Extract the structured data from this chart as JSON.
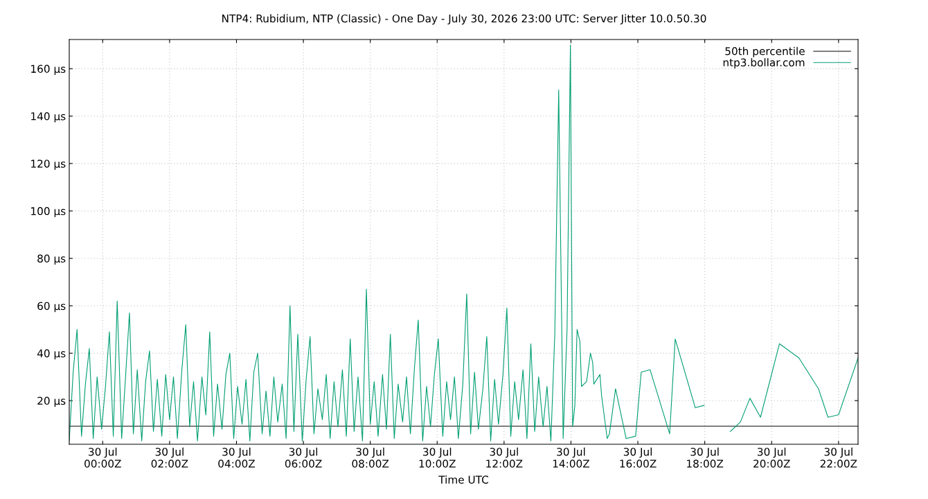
{
  "chart_data": {
    "type": "line",
    "title": "NTP4: Rubidium, NTP (Classic) - One Day - July 30, 2026 23:00 UTC: Server Jitter 10.0.50.30",
    "xlabel": "Time UTC",
    "xlim": [
      "2026-07-29T23:00",
      "2026-07-30T22:35"
    ],
    "ylim": [
      1.6,
      172.3
    ],
    "xticks": [
      {
        "value": "2026-07-30T00:00",
        "label": "30 Jul\n00:00Z"
      },
      {
        "value": "2026-07-30T02:00",
        "label": "30 Jul\n02:00Z"
      },
      {
        "value": "2026-07-30T04:00",
        "label": "30 Jul\n04:00Z"
      },
      {
        "value": "2026-07-30T06:00",
        "label": "30 Jul\n06:00Z"
      },
      {
        "value": "2026-07-30T08:00",
        "label": "30 Jul\n08:00Z"
      },
      {
        "value": "2026-07-30T10:00",
        "label": "30 Jul\n10:00Z"
      },
      {
        "value": "2026-07-30T12:00",
        "label": "30 Jul\n12:00Z"
      },
      {
        "value": "2026-07-30T14:00",
        "label": "30 Jul\n14:00Z"
      },
      {
        "value": "2026-07-30T16:00",
        "label": "30 Jul\n16:00Z"
      },
      {
        "value": "2026-07-30T18:00",
        "label": "30 Jul\n18:00Z"
      },
      {
        "value": "2026-07-30T20:00",
        "label": "30 Jul\n20:00Z"
      },
      {
        "value": "2026-07-30T22:00",
        "label": "30 Jul\n22:00Z"
      }
    ],
    "yticks": [
      {
        "value": 20,
        "label": "20 µs"
      },
      {
        "value": 40,
        "label": "40 µs"
      },
      {
        "value": 60,
        "label": "60 µs"
      },
      {
        "value": 80,
        "label": "80 µs"
      },
      {
        "value": 100,
        "label": "100 µs"
      },
      {
        "value": 120,
        "label": "120 µs"
      },
      {
        "value": 140,
        "label": "140 µs"
      },
      {
        "value": 160,
        "label": "160 µs"
      }
    ],
    "grid": true,
    "legend": "top right",
    "series": [
      {
        "name": "50th percentile",
        "color": "#000000",
        "x": [
          "2026-07-29T23:00",
          "2026-07-30T22:35"
        ],
        "values": [
          9.2,
          9.2
        ]
      },
      {
        "name": "ntp3.bollar.com",
        "color": "#009e73",
        "x": [
          "2026-07-29T23:00",
          "2026-07-29T23:07",
          "2026-07-29T23:14",
          "2026-07-29T23:22",
          "2026-07-29T23:29",
          "2026-07-29T23:36",
          "2026-07-29T23:43",
          "2026-07-29T23:50",
          "2026-07-29T23:58",
          "2026-07-30T00:05",
          "2026-07-30T00:12",
          "2026-07-30T00:19",
          "2026-07-30T00:26",
          "2026-07-30T00:34",
          "2026-07-30T00:41",
          "2026-07-30T00:48",
          "2026-07-30T00:55",
          "2026-07-30T01:02",
          "2026-07-30T01:10",
          "2026-07-30T01:17",
          "2026-07-30T01:24",
          "2026-07-30T01:31",
          "2026-07-30T01:38",
          "2026-07-30T01:46",
          "2026-07-30T01:53",
          "2026-07-30T02:00",
          "2026-07-30T02:07",
          "2026-07-30T02:14",
          "2026-07-30T02:22",
          "2026-07-30T02:29",
          "2026-07-30T02:36",
          "2026-07-30T02:43",
          "2026-07-30T02:50",
          "2026-07-30T02:58",
          "2026-07-30T03:05",
          "2026-07-30T03:12",
          "2026-07-30T03:19",
          "2026-07-30T03:26",
          "2026-07-30T03:34",
          "2026-07-30T03:41",
          "2026-07-30T03:48",
          "2026-07-30T03:55",
          "2026-07-30T04:02",
          "2026-07-30T04:10",
          "2026-07-30T04:17",
          "2026-07-30T04:24",
          "2026-07-30T04:31",
          "2026-07-30T04:38",
          "2026-07-30T04:46",
          "2026-07-30T04:53",
          "2026-07-30T05:00",
          "2026-07-30T05:07",
          "2026-07-30T05:14",
          "2026-07-30T05:22",
          "2026-07-30T05:29",
          "2026-07-30T05:36",
          "2026-07-30T05:43",
          "2026-07-30T05:50",
          "2026-07-30T05:58",
          "2026-07-30T06:05",
          "2026-07-30T06:12",
          "2026-07-30T06:19",
          "2026-07-30T06:26",
          "2026-07-30T06:34",
          "2026-07-30T06:41",
          "2026-07-30T06:48",
          "2026-07-30T06:55",
          "2026-07-30T07:02",
          "2026-07-30T07:10",
          "2026-07-30T07:17",
          "2026-07-30T07:24",
          "2026-07-30T07:31",
          "2026-07-30T07:38",
          "2026-07-30T07:46",
          "2026-07-30T07:53",
          "2026-07-30T08:00",
          "2026-07-30T08:07",
          "2026-07-30T08:14",
          "2026-07-30T08:22",
          "2026-07-30T08:29",
          "2026-07-30T08:36",
          "2026-07-30T08:43",
          "2026-07-30T08:50",
          "2026-07-30T08:58",
          "2026-07-30T09:05",
          "2026-07-30T09:12",
          "2026-07-30T09:19",
          "2026-07-30T09:26",
          "2026-07-30T09:34",
          "2026-07-30T09:41",
          "2026-07-30T09:48",
          "2026-07-30T09:55",
          "2026-07-30T10:02",
          "2026-07-30T10:10",
          "2026-07-30T10:17",
          "2026-07-30T10:24",
          "2026-07-30T10:31",
          "2026-07-30T10:38",
          "2026-07-30T10:46",
          "2026-07-30T10:53",
          "2026-07-30T11:00",
          "2026-07-30T11:07",
          "2026-07-30T11:14",
          "2026-07-30T11:22",
          "2026-07-30T11:29",
          "2026-07-30T11:36",
          "2026-07-30T11:43",
          "2026-07-30T11:50",
          "2026-07-30T11:58",
          "2026-07-30T12:05",
          "2026-07-30T12:12",
          "2026-07-30T12:19",
          "2026-07-30T12:26",
          "2026-07-30T12:34",
          "2026-07-30T12:41",
          "2026-07-30T12:48",
          "2026-07-30T12:55",
          "2026-07-30T13:02",
          "2026-07-30T13:10",
          "2026-07-30T13:17",
          "2026-07-30T13:24",
          "2026-07-30T13:31",
          "2026-07-30T13:38",
          "2026-07-30T13:46",
          "2026-07-30T13:53",
          "2026-07-30T13:59",
          "2026-07-30T14:03",
          "2026-07-30T14:07",
          "2026-07-30T14:11",
          "2026-07-30T14:16",
          "2026-07-30T14:19",
          "2026-07-30T14:28",
          "2026-07-30T14:35",
          "2026-07-30T14:39",
          "2026-07-30T14:41",
          "2026-07-30T14:52",
          "2026-07-30T14:55",
          "2026-07-30T15:05",
          "2026-07-30T15:09",
          "2026-07-30T15:20",
          "2026-07-30T15:39",
          "2026-07-30T15:56",
          "2026-07-30T16:06",
          "2026-07-30T16:22",
          "2026-07-30T16:57",
          "2026-07-30T17:07",
          "2026-07-30T17:43",
          "2026-07-30T17:59",
          "2026-07-30T18:24",
          "2026-07-30T18:46",
          "2026-07-30T19:04",
          "2026-07-30T19:21",
          "2026-07-30T19:40",
          "2026-07-30T20:14",
          "2026-07-30T20:49",
          "2026-07-30T21:24",
          "2026-07-30T21:41",
          "2026-07-30T22:00",
          "2026-07-30T22:35"
        ],
        "values": [
          3,
          32,
          50,
          5,
          27,
          42,
          4,
          30,
          8,
          26,
          49,
          5,
          62,
          4,
          30,
          57,
          6,
          33,
          3,
          28,
          41,
          7,
          29,
          5,
          31,
          12,
          30,
          4,
          33,
          52,
          9,
          28,
          3,
          30,
          14,
          49,
          5,
          27,
          8,
          31,
          40,
          4,
          26,
          10,
          29,
          3,
          32,
          40,
          6,
          24,
          5,
          30,
          11,
          27,
          4,
          60,
          7,
          48,
          3,
          29,
          47,
          6,
          25,
          12,
          31,
          4,
          28,
          9,
          33,
          5,
          46,
          7,
          30,
          3,
          67,
          10,
          28,
          5,
          31,
          8,
          48,
          4,
          27,
          11,
          30,
          6,
          33,
          54,
          3,
          26,
          9,
          31,
          46,
          5,
          28,
          12,
          30,
          4,
          27,
          65,
          6,
          32,
          8,
          25,
          47,
          3,
          29,
          10,
          31,
          59,
          5,
          28,
          12,
          33,
          4,
          44,
          7,
          30,
          9,
          26,
          3,
          48,
          151,
          4,
          50,
          170,
          9,
          18,
          50,
          45,
          26,
          28,
          40,
          36,
          27,
          31,
          22,
          4,
          6,
          25,
          4,
          5,
          32,
          33,
          6,
          46,
          17,
          18,
          null,
          7,
          11,
          21,
          13,
          44,
          38,
          25,
          13,
          14,
          38
        ]
      }
    ]
  }
}
